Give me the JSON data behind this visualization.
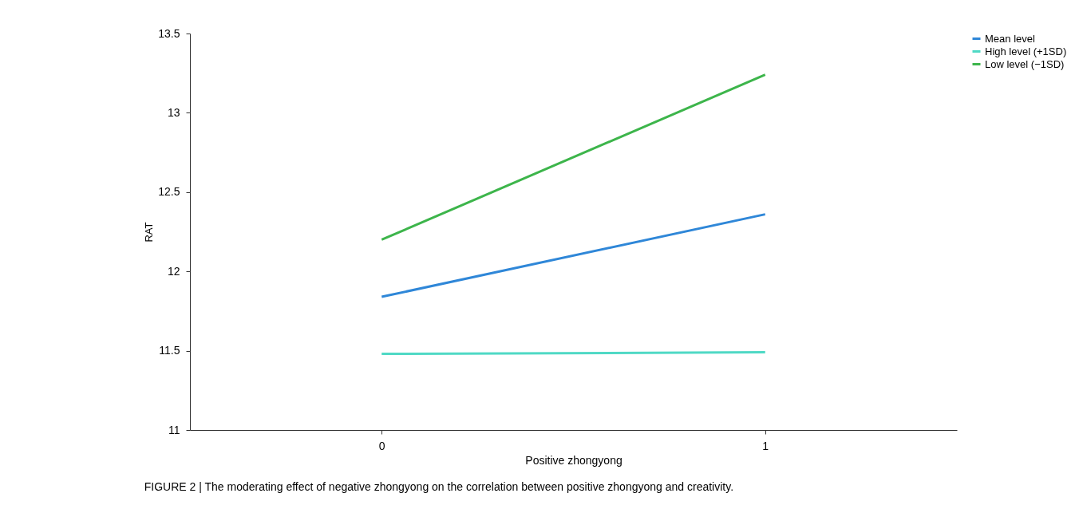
{
  "chart_data": {
    "type": "line",
    "xlabel": "Positive zhongyong",
    "ylabel": "RAT",
    "x": [
      0,
      1
    ],
    "xlim": [
      -0.5,
      1.5
    ],
    "xticks": [
      0,
      1
    ],
    "ylim": [
      11,
      13.5
    ],
    "yticks": [
      11,
      11.5,
      12,
      12.5,
      13,
      13.5
    ],
    "series": [
      {
        "name": "Mean level",
        "color": "#2f87d8",
        "values": [
          11.84,
          12.36
        ]
      },
      {
        "name": "High level (+1SD)",
        "color": "#4fd9c5",
        "values": [
          11.48,
          11.49
        ]
      },
      {
        "name": "Low level (−1SD)",
        "color": "#3db54b",
        "values": [
          12.2,
          13.24
        ]
      }
    ],
    "grid": false,
    "legend": "right",
    "marker": "none",
    "line_style": "solid",
    "annotations": [
      "FIGURE 2 | The moderating effect of negative zhongyong on the correlation between positive zhongyong and creativity."
    ]
  }
}
